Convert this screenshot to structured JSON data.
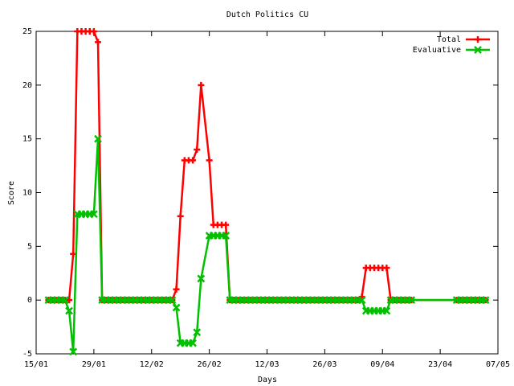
{
  "chart_data": {
    "type": "line",
    "title": "Dutch Politics CU",
    "x_label": "Days",
    "y_label": "Score",
    "x": [
      "18/01",
      "19/01",
      "20/01",
      "21/01",
      "22/01",
      "23/01",
      "24/01",
      "25/01",
      "26/01",
      "27/01",
      "28/01",
      "29/01",
      "30/01",
      "31/01",
      "01/02",
      "02/02",
      "03/02",
      "04/02",
      "05/02",
      "06/02",
      "07/02",
      "08/02",
      "09/02",
      "10/02",
      "11/02",
      "12/02",
      "13/02",
      "14/02",
      "15/02",
      "16/02",
      "17/02",
      "18/02",
      "19/02",
      "20/02",
      "21/02",
      "22/02",
      "23/02",
      "24/02",
      "26/02",
      "27/02",
      "28/02",
      "01/03",
      "02/03",
      "03/03",
      "04/03",
      "05/03",
      "06/03",
      "07/03",
      "08/03",
      "09/03",
      "10/03",
      "11/03",
      "12/03",
      "13/03",
      "14/03",
      "15/03",
      "16/03",
      "17/03",
      "18/03",
      "19/03",
      "20/03",
      "21/03",
      "22/03",
      "23/03",
      "24/03",
      "25/03",
      "26/03",
      "27/03",
      "28/03",
      "29/03",
      "30/03",
      "31/03",
      "01/04",
      "02/04",
      "03/04",
      "04/04",
      "05/04",
      "06/04",
      "07/04",
      "08/04",
      "09/04",
      "10/04",
      "11/04",
      "12/04",
      "13/04",
      "14/04",
      "15/04",
      "16/04",
      "27/04",
      "28/04",
      "29/04",
      "30/04",
      "01/05",
      "02/05",
      "03/05",
      "04/05"
    ],
    "series": [
      {
        "name": "Total",
        "color": "#ff0000",
        "marker": "plus",
        "values": [
          0,
          0,
          0,
          0,
          0,
          0,
          4.3,
          25,
          25,
          25,
          25,
          25,
          24,
          0,
          0,
          0,
          0,
          0,
          0,
          0,
          0,
          0,
          0,
          0,
          0,
          0,
          0,
          0,
          0,
          0,
          0,
          1,
          7.8,
          13,
          13,
          13,
          14,
          20,
          13,
          7,
          7,
          7,
          7,
          0,
          0,
          0,
          0,
          0,
          0,
          0,
          0,
          0,
          0,
          0,
          0,
          0,
          0,
          0,
          0,
          0,
          0,
          0,
          0,
          0,
          0,
          0,
          0,
          0,
          0,
          0,
          0,
          0,
          0,
          0,
          0,
          0.3,
          3,
          3,
          3,
          3,
          3,
          3,
          0,
          0,
          0,
          0,
          0,
          0,
          0,
          0,
          0,
          0,
          0,
          0,
          0,
          0
        ]
      },
      {
        "name": "Evaluative",
        "color": "#00c000",
        "marker": "cross",
        "values": [
          0,
          0,
          0,
          0,
          0,
          -1,
          -4.8,
          8,
          8,
          8,
          8,
          8,
          15,
          0,
          0,
          0,
          0,
          0,
          0,
          0,
          0,
          0,
          0,
          0,
          0,
          0,
          0,
          0,
          0,
          0,
          0,
          -0.7,
          -4,
          -4,
          -4,
          -4,
          -3,
          2,
          6,
          6,
          6,
          6,
          6,
          0,
          0,
          0,
          0,
          0,
          0,
          0,
          0,
          0,
          0,
          0,
          0,
          0,
          0,
          0,
          0,
          0,
          0,
          0,
          0,
          0,
          0,
          0,
          0,
          0,
          0,
          0,
          0,
          0,
          0,
          0,
          0,
          0,
          -1,
          -1,
          -1,
          -1,
          -1,
          -1,
          0,
          0,
          0,
          0,
          0,
          0,
          0,
          0,
          0,
          0,
          0,
          0,
          0,
          0
        ]
      }
    ],
    "xlim": [
      "15/01",
      "07/05"
    ],
    "xticks": [
      "15/01",
      "29/01",
      "12/02",
      "26/02",
      "12/03",
      "26/03",
      "09/04",
      "23/04",
      "07/05"
    ],
    "ylim": [
      -5,
      25
    ],
    "yticks": [
      -5,
      0,
      5,
      10,
      15,
      20,
      25
    ],
    "legend": "top-right",
    "grid": false
  }
}
